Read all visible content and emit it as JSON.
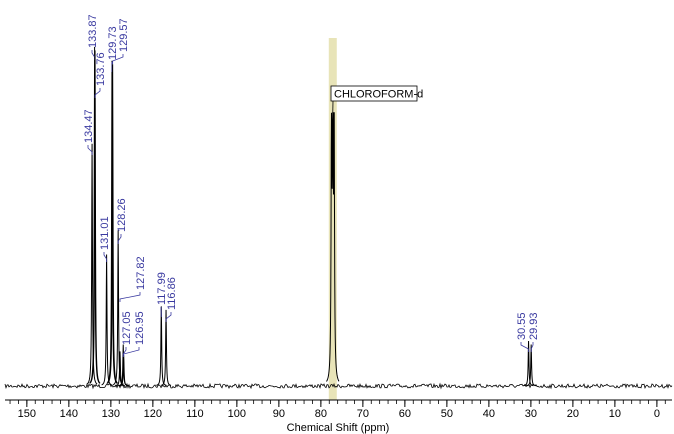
{
  "chart_data": {
    "type": "spectrum",
    "xlabel": "Chemical Shift (ppm)",
    "xlim": [
      155.2,
      -3.6
    ],
    "ylim": [
      0,
      100
    ],
    "xticks": [
      150,
      140,
      130,
      120,
      110,
      100,
      90,
      80,
      70,
      60,
      50,
      40,
      30,
      20,
      10,
      0
    ],
    "xticks_minor": [
      154,
      152,
      150,
      148,
      146,
      144,
      142,
      140,
      138,
      136,
      134,
      132,
      130,
      128,
      126,
      124,
      122,
      120,
      118,
      116,
      114,
      112,
      110,
      108,
      106,
      104,
      102,
      100,
      98,
      96,
      94,
      92,
      90,
      88,
      86,
      84,
      82,
      80,
      78,
      76,
      74,
      72,
      70,
      68,
      66,
      64,
      62,
      60,
      58,
      56,
      54,
      52,
      50,
      48,
      46,
      44,
      42,
      40,
      38,
      36,
      34,
      32,
      30,
      28,
      26,
      24,
      22,
      20,
      18,
      16,
      14,
      12,
      10,
      8,
      6,
      4,
      2,
      0,
      -2
    ],
    "color": "#000000",
    "label_color": "#3a3aa0",
    "peaks": {
      "shifts": [
        134.47,
        133.87,
        133.76,
        129.73,
        129.57,
        131.01,
        128.26,
        127.82,
        127.05,
        126.95,
        117.99,
        116.86,
        30.55,
        29.93
      ],
      "heights": [
        70,
        98,
        97,
        94,
        93,
        38,
        45,
        10,
        12,
        9,
        23,
        22,
        13,
        12
      ]
    },
    "solvent": {
      "label": "CHLOROFORM-d",
      "shift": 77.16,
      "height": 79,
      "highlight": "#e8e4b8"
    }
  }
}
